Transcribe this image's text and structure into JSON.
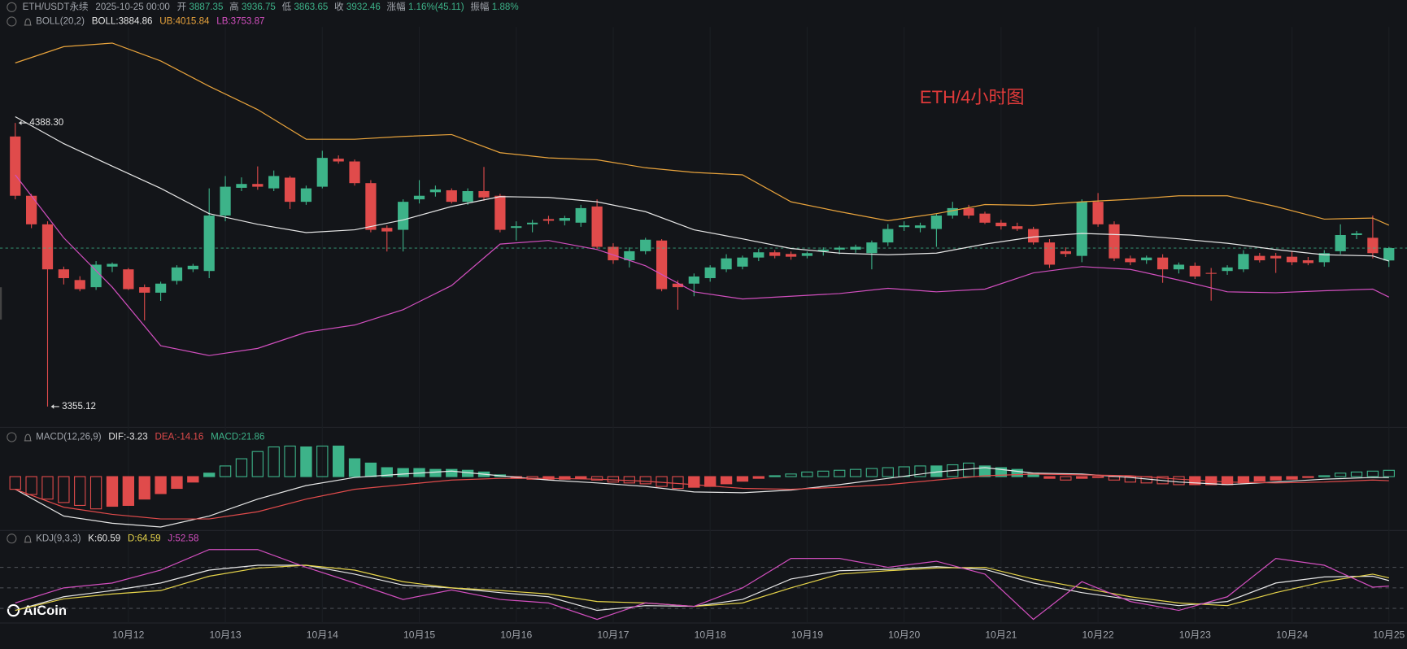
{
  "chart_data": [
    {
      "type": "candlestick",
      "title": "ETH/USDT永续",
      "time": "2025-10-25 00:00",
      "header_labels": {
        "open": "开",
        "high": "高",
        "low": "低",
        "close": "收",
        "change": "涨幅",
        "amplitude": "振幅"
      },
      "change": "1.16%(45.11)",
      "amplitude": "1.88%",
      "indicator": "BOLL(20,2)",
      "annotation": "ETH/4小时图",
      "watermark": "AiCoin",
      "extreme_labels": {
        "high": "4388.30",
        "low": "3355.12"
      },
      "up_color": "#3db389",
      "down_color": "#e04b4b",
      "last_price_line": true,
      "ylim": [
        3283,
        4738
      ],
      "xticks": [
        {
          "value": 7,
          "label": "10月12"
        },
        {
          "value": 13,
          "label": "10月13"
        },
        {
          "value": 19,
          "label": "10月14"
        },
        {
          "value": 25,
          "label": "10月15"
        },
        {
          "value": 31,
          "label": "10月16"
        },
        {
          "value": 37,
          "label": "10月17"
        },
        {
          "value": 43,
          "label": "10月18"
        },
        {
          "value": 49,
          "label": "10月19"
        },
        {
          "value": 55,
          "label": "10月20"
        },
        {
          "value": 61,
          "label": "10月21"
        },
        {
          "value": 67,
          "label": "10月22"
        },
        {
          "value": 73,
          "label": "10月23"
        },
        {
          "value": 79,
          "label": "10月24"
        },
        {
          "value": 85,
          "label": "10月25"
        }
      ],
      "ohlc": [
        [
          4339,
          4388.3,
          4110,
          4123
        ],
        [
          4123,
          4130,
          4005,
          4019
        ],
        [
          4019,
          4030,
          3355.12,
          3855
        ],
        [
          3855,
          3865,
          3800,
          3823
        ],
        [
          3816,
          3830,
          3775,
          3783
        ],
        [
          3790,
          3885,
          3780,
          3872
        ],
        [
          3865,
          3880,
          3845,
          3875
        ],
        [
          3855,
          3860,
          3780,
          3783
        ],
        [
          3790,
          3800,
          3669,
          3770
        ],
        [
          3770,
          3810,
          3740,
          3803
        ],
        [
          3813,
          3870,
          3800,
          3862
        ],
        [
          3855,
          3875,
          3845,
          3868
        ],
        [
          3849,
          4150,
          3823,
          4051
        ],
        [
          4051,
          4195,
          4030,
          4156
        ],
        [
          4152,
          4190,
          4140,
          4166
        ],
        [
          4166,
          4230,
          4145,
          4156
        ],
        [
          4150,
          4215,
          4140,
          4195
        ],
        [
          4189,
          4195,
          4075,
          4101
        ],
        [
          4101,
          4160,
          4090,
          4150
        ],
        [
          4156,
          4287,
          4150,
          4261
        ],
        [
          4258,
          4270,
          4240,
          4248
        ],
        [
          4248,
          4255,
          4160,
          4169
        ],
        [
          4169,
          4180,
          3990,
          3999
        ],
        [
          4006,
          4015,
          3920,
          3993
        ],
        [
          3999,
          4110,
          3920,
          4101
        ],
        [
          4110,
          4180,
          4095,
          4123
        ],
        [
          4136,
          4160,
          4120,
          4146
        ],
        [
          4143,
          4150,
          4095,
          4101
        ],
        [
          4101,
          4150,
          4090,
          4140
        ],
        [
          4140,
          4228,
          4105,
          4117
        ],
        [
          4123,
          4130,
          3990,
          3999
        ],
        [
          4006,
          4030,
          3960,
          4012
        ],
        [
          4019,
          4035,
          3990,
          4025
        ],
        [
          4038,
          4050,
          4020,
          4032
        ],
        [
          4032,
          4050,
          4015,
          4042
        ],
        [
          4025,
          4090,
          4010,
          4078
        ],
        [
          4084,
          4110,
          3930,
          3937
        ],
        [
          3937,
          3950,
          3875,
          3888
        ],
        [
          3888,
          3935,
          3862,
          3921
        ],
        [
          3921,
          3970,
          3910,
          3963
        ],
        [
          3960,
          3965,
          3775,
          3783
        ],
        [
          3803,
          3815,
          3708,
          3790
        ],
        [
          3803,
          3840,
          3757,
          3829
        ],
        [
          3823,
          3870,
          3810,
          3862
        ],
        [
          3855,
          3910,
          3845,
          3895
        ],
        [
          3865,
          3905,
          3855,
          3898
        ],
        [
          3898,
          3930,
          3885,
          3917
        ],
        [
          3917,
          3925,
          3895,
          3904
        ],
        [
          3911,
          3920,
          3890,
          3901
        ],
        [
          3904,
          3920,
          3895,
          3914
        ],
        [
          3921,
          3935,
          3905,
          3927
        ],
        [
          3927,
          3940,
          3910,
          3934
        ],
        [
          3927,
          3945,
          3915,
          3937
        ],
        [
          3914,
          3960,
          3855,
          3953
        ],
        [
          3953,
          4020,
          3940,
          4002
        ],
        [
          4009,
          4030,
          3995,
          4015
        ],
        [
          4006,
          4025,
          3990,
          4015
        ],
        [
          4002,
          4058,
          3937,
          4051
        ],
        [
          4051,
          4101,
          4040,
          4078
        ],
        [
          4078,
          4090,
          4040,
          4051
        ],
        [
          4058,
          4065,
          4020,
          4025
        ],
        [
          4025,
          4035,
          4000,
          4012
        ],
        [
          4012,
          4025,
          3995,
          4002
        ],
        [
          4002,
          4010,
          3945,
          3953
        ],
        [
          3953,
          3965,
          3860,
          3872
        ],
        [
          3921,
          3935,
          3900,
          3911
        ],
        [
          3904,
          4110,
          3881,
          4101
        ],
        [
          4101,
          4133,
          4010,
          4019
        ],
        [
          4019,
          4030,
          3885,
          3895
        ],
        [
          3895,
          3905,
          3870,
          3881
        ],
        [
          3888,
          3905,
          3875,
          3898
        ],
        [
          3898,
          3910,
          3806,
          3855
        ],
        [
          3855,
          3880,
          3840,
          3872
        ],
        [
          3868,
          3880,
          3820,
          3829
        ],
        [
          3842,
          3860,
          3741,
          3839
        ],
        [
          3849,
          3870,
          3835,
          3862
        ],
        [
          3855,
          3925,
          3845,
          3911
        ],
        [
          3904,
          3915,
          3880,
          3888
        ],
        [
          3904,
          3915,
          3842,
          3895
        ],
        [
          3901,
          3920,
          3870,
          3881
        ],
        [
          3888,
          3900,
          3870,
          3878
        ],
        [
          3881,
          3925,
          3865,
          3914
        ],
        [
          3921,
          4019,
          3910,
          3980
        ],
        [
          3980,
          3995,
          3965,
          3986
        ],
        [
          3970,
          4051,
          3895,
          3914
        ],
        [
          3887.35,
          3936.75,
          3863.65,
          3932.46
        ]
      ],
      "x": [
        0,
        3,
        6,
        9,
        12,
        15,
        18,
        21,
        24,
        27,
        30,
        33,
        36,
        39,
        42,
        45,
        48,
        51,
        54,
        57,
        60,
        63,
        66,
        69,
        72,
        75,
        78,
        81,
        84,
        85
      ],
      "series": [
        {
          "name": "BOLL:3884.86",
          "color": "#e6e6e6",
          "values": [
            4411,
            4313,
            4231,
            4150,
            4058,
            4019,
            3989,
            3999,
            4035,
            4084,
            4120,
            4117,
            4101,
            4065,
            3999,
            3966,
            3931,
            3914,
            3908,
            3914,
            3947,
            3973,
            3986,
            3980,
            3966,
            3950,
            3927,
            3908,
            3904,
            3884.86
          ]
        },
        {
          "name": "UB:4015.84",
          "color": "#e8a33c",
          "values": [
            4607,
            4666,
            4679,
            4614,
            4522,
            4437,
            4329,
            4329,
            4339,
            4346,
            4280,
            4261,
            4254,
            4225,
            4208,
            4199,
            4101,
            4065,
            4032,
            4058,
            4091,
            4088,
            4101,
            4110,
            4123,
            4123,
            4084,
            4038,
            4042,
            4015.84
          ]
        },
        {
          "name": "LB:3753.87",
          "color": "#d24fbf",
          "values": [
            4199,
            3970,
            3790,
            3577,
            3541,
            3567,
            3626,
            3652,
            3708,
            3796,
            3947,
            3960,
            3927,
            3868,
            3773,
            3747,
            3757,
            3767,
            3786,
            3773,
            3783,
            3842,
            3865,
            3855,
            3816,
            3773,
            3770,
            3777,
            3783,
            3753.87
          ]
        }
      ]
    },
    {
      "type": "macd",
      "indicator": "MACD(12,26,9)",
      "ylim": [
        -184,
        112
      ],
      "up_color": "#3db389",
      "down_color": "#e04b4b",
      "histogram": {
        "name": "MACD:21.86",
        "color": "#3db389",
        "values": [
          -44,
          -62,
          -78,
          -90,
          -100,
          -112,
          -103,
          -100,
          -78,
          -59,
          -41,
          -19,
          12,
          37,
          62,
          87,
          103,
          106,
          103,
          106,
          106,
          62,
          47,
          31,
          28,
          28,
          25,
          25,
          22,
          16,
          6,
          -6,
          -9,
          -9,
          -9,
          -6,
          -12,
          -19,
          -22,
          -25,
          -34,
          -41,
          -37,
          -34,
          -25,
          -16,
          -6,
          3,
          9,
          16,
          19,
          22,
          25,
          28,
          31,
          34,
          37,
          37,
          41,
          47,
          37,
          31,
          25,
          12,
          -6,
          -12,
          -6,
          -3,
          -12,
          -19,
          -22,
          -25,
          -28,
          -28,
          -28,
          -28,
          -22,
          -16,
          -12,
          -9,
          -3,
          3,
          12,
          16,
          19,
          21.86
        ]
      },
      "x": [
        0,
        3,
        6,
        9,
        12,
        15,
        18,
        21,
        24,
        27,
        30,
        33,
        36,
        39,
        42,
        45,
        48,
        51,
        54,
        57,
        60,
        63,
        66,
        69,
        72,
        75,
        78,
        81,
        84,
        85
      ],
      "series": [
        {
          "name": "DIF:-3.23",
          "color": "#e6e6e6",
          "values": [
            -44,
            -137,
            -162,
            -175,
            -137,
            -78,
            -31,
            -3,
            9,
            19,
            3,
            -12,
            -22,
            -34,
            -53,
            -56,
            -47,
            -28,
            -6,
            16,
            31,
            12,
            9,
            -3,
            -19,
            -28,
            -19,
            -9,
            -3,
            -3.23
          ]
        },
        {
          "name": "DEA:-14.16",
          "color": "#e04b4b",
          "values": [
            -44,
            -106,
            -131,
            -147,
            -147,
            -122,
            -78,
            -44,
            -28,
            -12,
            -6,
            -6,
            -9,
            -16,
            -28,
            -41,
            -44,
            -37,
            -28,
            -12,
            3,
            9,
            6,
            3,
            -9,
            -19,
            -22,
            -19,
            -12,
            -14.16
          ]
        }
      ]
    },
    {
      "type": "kdj",
      "indicator": "KDJ(9,3,3)",
      "ylim": [
        0,
        122
      ],
      "reference_lines": [
        20,
        50,
        80
      ],
      "x": [
        0,
        3,
        6,
        9,
        12,
        15,
        18,
        21,
        24,
        27,
        30,
        33,
        36,
        39,
        42,
        45,
        48,
        51,
        54,
        57,
        60,
        63,
        66,
        69,
        72,
        75,
        78,
        81,
        84,
        85
      ],
      "series": [
        {
          "name": "K:60.59",
          "color": "#e6e6e6",
          "values": [
            17,
            37,
            46,
            57,
            76,
            83,
            83,
            70,
            54,
            50,
            43,
            37,
            17,
            24,
            23,
            33,
            63,
            75,
            77,
            81,
            77,
            57,
            43,
            33,
            24,
            30,
            57,
            66,
            67,
            60.59
          ]
        },
        {
          "name": "D:64.59",
          "color": "#e6d44a",
          "values": [
            17,
            34,
            41,
            46,
            67,
            79,
            83,
            76,
            59,
            50,
            46,
            41,
            30,
            28,
            23,
            28,
            50,
            70,
            75,
            79,
            80,
            63,
            50,
            37,
            28,
            24,
            43,
            59,
            70,
            64.59
          ]
        },
        {
          "name": "J:52.58",
          "color": "#d24fbf",
          "values": [
            28,
            50,
            57,
            76,
            106,
            106,
            80,
            57,
            33,
            47,
            33,
            28,
            4,
            28,
            23,
            50,
            93,
            93,
            80,
            89,
            70,
            4,
            59,
            30,
            17,
            37,
            93,
            83,
            51,
            52.58
          ]
        }
      ]
    }
  ]
}
